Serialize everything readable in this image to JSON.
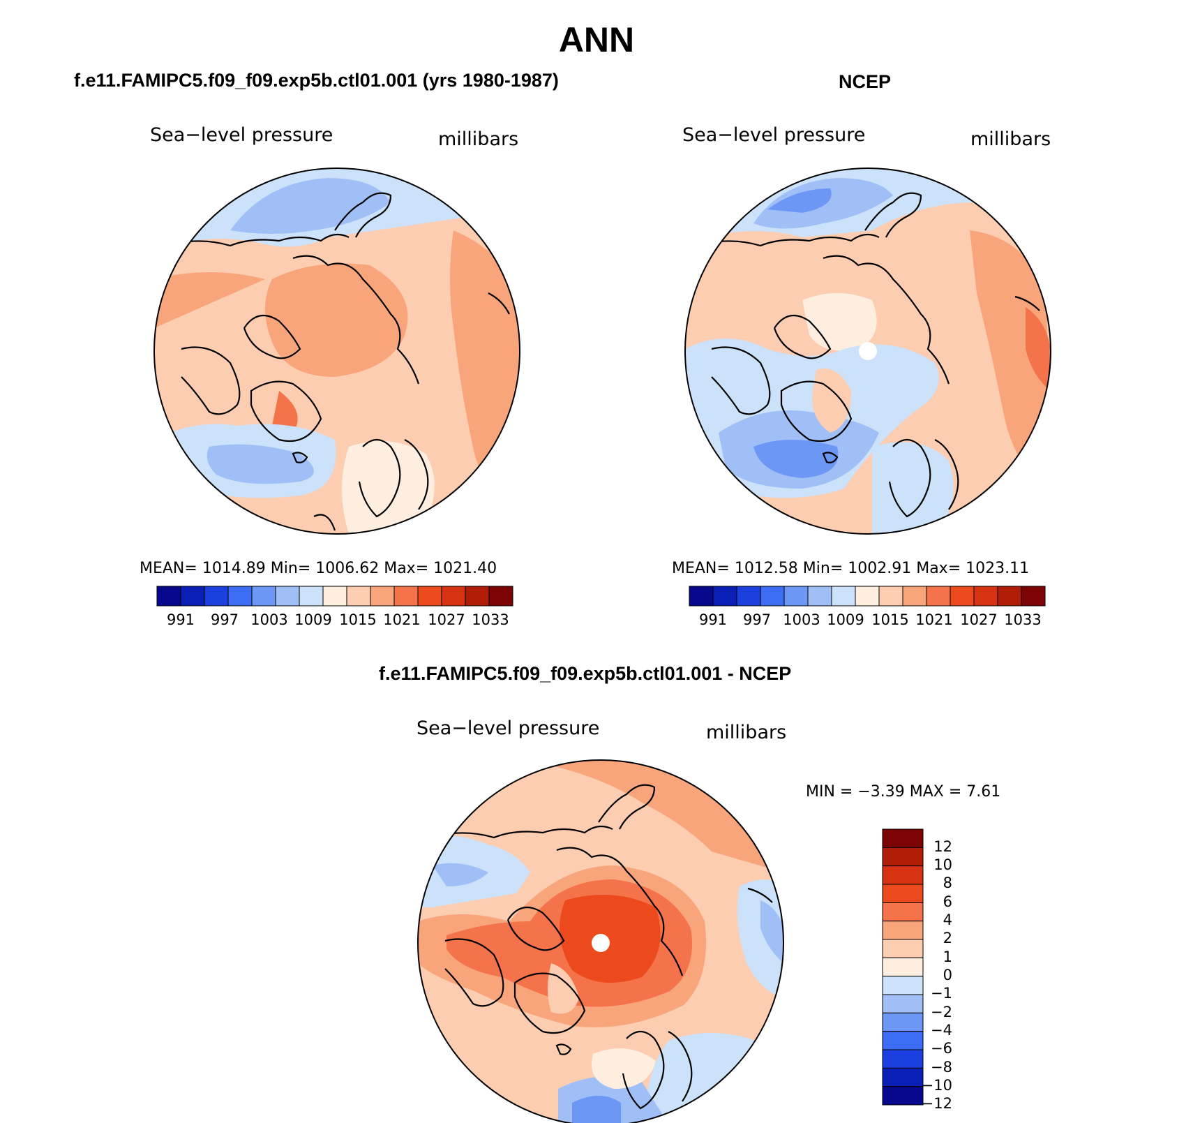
{
  "figure": {
    "title": "ANN",
    "variable_label": "Sea−level pressure",
    "units_label": "millibars"
  },
  "panels": {
    "model": {
      "title": "f.e11.FAMIPC5.f09_f09.exp5b.ctl01.001 (yrs 1980-1987)",
      "stats": "MEAN=  1014.89    Min=  1006.62    Max=  1021.40"
    },
    "obs": {
      "title": "NCEP",
      "stats": "MEAN=  1012.58    Min=  1002.91    Max=  1023.11"
    },
    "diff": {
      "title": "f.e11.FAMIPC5.f09_f09.exp5b.ctl01.001 - NCEP",
      "stats": "MIN =    −3.39  MAX =     7.61"
    }
  },
  "colorbars": {
    "abs": {
      "colors": [
        "#08088c",
        "#0a1fb5",
        "#1c3fe0",
        "#3d6cf5",
        "#6d97f5",
        "#a0bff7",
        "#cce2fa",
        "#fdeee0",
        "#fccdb0",
        "#f9a57c",
        "#f5734a",
        "#ec4a1c",
        "#d73312",
        "#b21d08",
        "#7d0405"
      ],
      "ticks": [
        "991",
        "997",
        "1003",
        "1009",
        "1015",
        "1021",
        "1027",
        "1033"
      ]
    },
    "diff": {
      "colors": [
        "#7d0405",
        "#b21d08",
        "#d73312",
        "#ec4a1c",
        "#f5734a",
        "#f9a57c",
        "#fccdb0",
        "#fdeee0",
        "#cce2fa",
        "#a0bff7",
        "#6d97f5",
        "#3d6cf5",
        "#1c3fe0",
        "#0a1fb5",
        "#08088c"
      ],
      "ticks": [
        "12",
        "10",
        "8",
        "6",
        "4",
        "2",
        "1",
        "0",
        "−1",
        "−2",
        "−4",
        "−6",
        "−8",
        "−10",
        "−12"
      ]
    }
  },
  "map_colors": {
    "pale_blue": "#cce2fa",
    "light_blue": "#a0bff7",
    "mid_blue": "#6d97f5",
    "cream": "#fdeee0",
    "light_salmon": "#fccdb0",
    "salmon": "#f9a57c",
    "orange": "#f5734a",
    "red_orange": "#ec4a1c"
  }
}
